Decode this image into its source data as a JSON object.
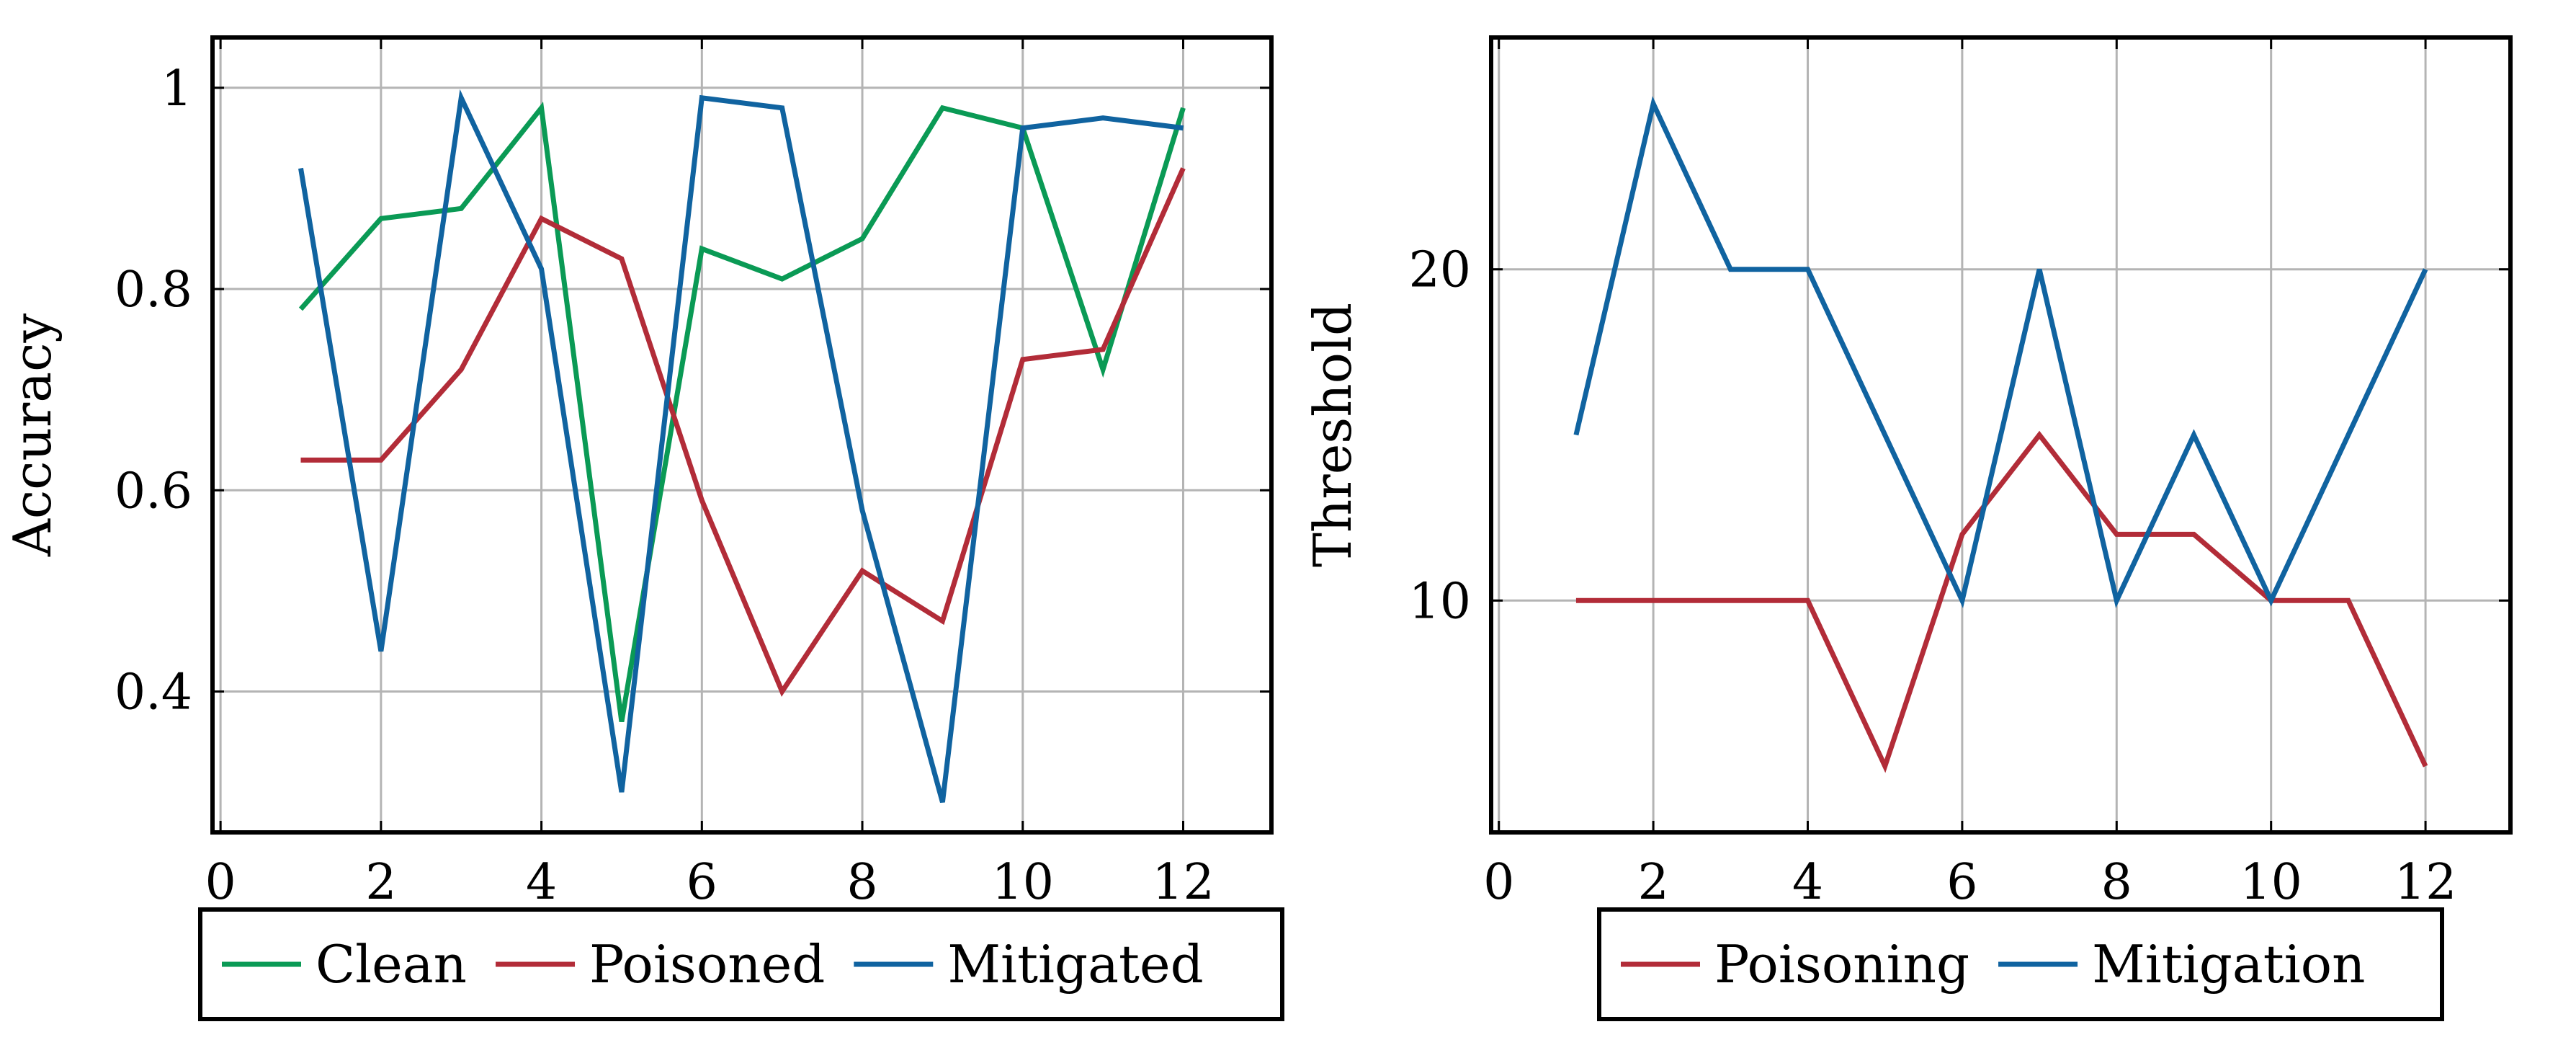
{
  "chart_data": [
    {
      "type": "line",
      "title": "",
      "xlabel": "",
      "ylabel": "Accuracy",
      "xlim": [
        -0.1,
        13.1
      ],
      "ylim": [
        0.26,
        1.05
      ],
      "xticks": [
        0,
        2,
        4,
        6,
        8,
        10,
        12
      ],
      "xtick_labels": [
        "0",
        "2",
        "4",
        "6",
        "8",
        "10",
        "12"
      ],
      "yticks": [
        0.4,
        0.6,
        0.8,
        1.0
      ],
      "ytick_labels": [
        "0.4",
        "0.6",
        "0.8",
        "1"
      ],
      "grid": true,
      "legend_position": "bottom",
      "x": [
        1,
        2,
        3,
        4,
        5,
        6,
        7,
        8,
        9,
        10,
        11,
        12
      ],
      "series": [
        {
          "name": "Clean",
          "color": "#0a9a55",
          "values": [
            0.78,
            0.87,
            0.88,
            0.98,
            0.37,
            0.84,
            0.81,
            0.85,
            0.98,
            0.96,
            0.72,
            0.98
          ]
        },
        {
          "name": "Poisoned",
          "color": "#b22c38",
          "values": [
            0.63,
            0.63,
            0.72,
            0.87,
            0.83,
            0.59,
            0.4,
            0.52,
            0.47,
            0.73,
            0.74,
            0.92
          ]
        },
        {
          "name": "Mitigated",
          "color": "#1063a0",
          "values": [
            0.92,
            0.44,
            0.99,
            0.82,
            0.3,
            0.99,
            0.98,
            0.58,
            0.29,
            0.96,
            0.97,
            0.96
          ]
        }
      ]
    },
    {
      "type": "line",
      "title": "",
      "xlabel": "",
      "ylabel": "Threshold",
      "xlim": [
        -0.1,
        13.1
      ],
      "ylim": [
        3,
        27
      ],
      "xticks": [
        0,
        2,
        4,
        6,
        8,
        10,
        12
      ],
      "xtick_labels": [
        "0",
        "2",
        "4",
        "6",
        "8",
        "10",
        "12"
      ],
      "yticks": [
        10,
        20
      ],
      "ytick_labels": [
        "10",
        "20"
      ],
      "grid": true,
      "legend_position": "bottom",
      "x": [
        1,
        2,
        3,
        4,
        5,
        6,
        7,
        8,
        9,
        10,
        11,
        12
      ],
      "series": [
        {
          "name": "Poisoning",
          "color": "#b22c38",
          "values": [
            10,
            10,
            10,
            10,
            5,
            12,
            15,
            12,
            12,
            10,
            10,
            5
          ]
        },
        {
          "name": "Mitigation",
          "color": "#1063a0",
          "values": [
            15,
            25,
            20,
            20,
            15,
            10,
            20,
            10,
            15,
            10,
            15,
            20
          ]
        }
      ]
    }
  ]
}
